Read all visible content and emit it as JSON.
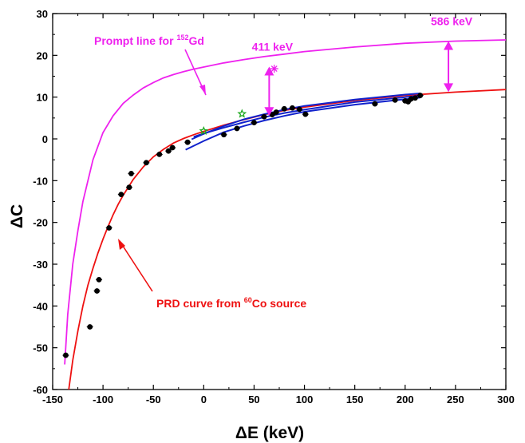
{
  "chart_data": {
    "type": "scatter",
    "xlabel": "ΔE (keV)",
    "ylabel": "ΔC",
    "xlim": [
      -150,
      300
    ],
    "ylim": [
      -60,
      30
    ],
    "x_ticks": [
      -150,
      -100,
      -50,
      0,
      50,
      100,
      150,
      200,
      250,
      300
    ],
    "y_ticks": [
      -60,
      -50,
      -40,
      -30,
      -20,
      -10,
      0,
      10,
      20,
      30
    ],
    "grid": false,
    "colors": {
      "prompt": "#ee22ee",
      "prd": "#ee1111",
      "band": "#1122cc",
      "points": "#000000",
      "star": "#22aa22",
      "arrow": "#ee22ee"
    },
    "series": [
      {
        "kind": "points",
        "points": [
          {
            "x": -137,
            "y": -51.8
          },
          {
            "x": -113,
            "y": -45.0
          },
          {
            "x": -106,
            "y": -36.4
          },
          {
            "x": -104,
            "y": -33.7
          },
          {
            "x": -94,
            "y": -21.3
          },
          {
            "x": -82,
            "y": -13.3
          },
          {
            "x": -74,
            "y": -11.6
          },
          {
            "x": -72,
            "y": -8.3
          },
          {
            "x": -57,
            "y": -5.7
          },
          {
            "x": -44,
            "y": -3.7
          },
          {
            "x": -35,
            "y": -2.9
          },
          {
            "x": -31,
            "y": -2.1
          },
          {
            "x": -16,
            "y": -0.8
          },
          {
            "x": 20,
            "y": 1.0
          },
          {
            "x": 33,
            "y": 2.5
          },
          {
            "x": 50,
            "y": 3.9
          },
          {
            "x": 60,
            "y": 5.3
          },
          {
            "x": 68,
            "y": 5.8
          },
          {
            "x": 72,
            "y": 6.4
          },
          {
            "x": 80,
            "y": 7.2
          },
          {
            "x": 88,
            "y": 7.4
          },
          {
            "x": 95,
            "y": 7.1
          },
          {
            "x": 101,
            "y": 5.9
          },
          {
            "x": 170,
            "y": 8.4
          },
          {
            "x": 190,
            "y": 9.3
          },
          {
            "x": 200,
            "y": 9.1
          },
          {
            "x": 203,
            "y": 8.9
          },
          {
            "x": 206,
            "y": 9.6
          },
          {
            "x": 210,
            "y": 9.8
          },
          {
            "x": 215,
            "y": 10.4
          }
        ]
      },
      {
        "kind": "stars",
        "points": [
          {
            "x": 0,
            "y": 1.9
          },
          {
            "x": 38,
            "y": 6.0
          }
        ]
      },
      {
        "kind": "star-cross",
        "points": [
          {
            "x": 70,
            "y": 16.8
          }
        ]
      }
    ],
    "curves": [
      {
        "kind": "prompt",
        "points": [
          [
            -138,
            -54
          ],
          [
            -135,
            -42
          ],
          [
            -130,
            -30
          ],
          [
            -125,
            -22
          ],
          [
            -120,
            -15
          ],
          [
            -110,
            -5
          ],
          [
            -100,
            1.5
          ],
          [
            -90,
            5.5
          ],
          [
            -80,
            8.5
          ],
          [
            -70,
            10.5
          ],
          [
            -60,
            12.2
          ],
          [
            -50,
            13.5
          ],
          [
            -40,
            14.6
          ],
          [
            -30,
            15.4
          ],
          [
            -20,
            16.1
          ],
          [
            -10,
            16.7
          ],
          [
            0,
            17.2
          ],
          [
            20,
            18.2
          ],
          [
            40,
            19.0
          ],
          [
            60,
            19.7
          ],
          [
            80,
            20.3
          ],
          [
            100,
            20.9
          ],
          [
            150,
            22.0
          ],
          [
            200,
            22.9
          ],
          [
            250,
            23.4
          ],
          [
            300,
            23.7
          ]
        ]
      },
      {
        "kind": "prd",
        "points": [
          [
            -134,
            -60
          ],
          [
            -130,
            -53
          ],
          [
            -125,
            -46
          ],
          [
            -120,
            -40
          ],
          [
            -115,
            -35
          ],
          [
            -110,
            -31
          ],
          [
            -105,
            -27.3
          ],
          [
            -100,
            -24
          ],
          [
            -95,
            -21
          ],
          [
            -90,
            -18.2
          ],
          [
            -85,
            -15.7
          ],
          [
            -80,
            -13.5
          ],
          [
            -70,
            -9.7
          ],
          [
            -60,
            -6.7
          ],
          [
            -50,
            -4.3
          ],
          [
            -40,
            -2.5
          ],
          [
            -30,
            -1
          ],
          [
            -20,
            0.1
          ],
          [
            -10,
            1
          ],
          [
            0,
            1.8
          ],
          [
            20,
            3.3
          ],
          [
            40,
            4.6
          ],
          [
            60,
            5.8
          ],
          [
            80,
            6.8
          ],
          [
            100,
            7.6
          ],
          [
            150,
            9.2
          ],
          [
            200,
            10.4
          ],
          [
            250,
            11.2
          ],
          [
            300,
            11.8
          ]
        ]
      },
      {
        "kind": "band-upper",
        "points": [
          [
            -12,
            -0.1
          ],
          [
            0,
            1.2
          ],
          [
            20,
            3.1
          ],
          [
            40,
            4.7
          ],
          [
            60,
            5.9
          ],
          [
            80,
            7.0
          ],
          [
            100,
            7.9
          ],
          [
            150,
            9.4
          ],
          [
            200,
            10.6
          ],
          [
            215,
            10.9
          ]
        ]
      },
      {
        "kind": "band-lower",
        "points": [
          [
            -18,
            -2.6
          ],
          [
            0,
            -0.5
          ],
          [
            20,
            1.6
          ],
          [
            40,
            3.1
          ],
          [
            60,
            4.4
          ],
          [
            80,
            5.5
          ],
          [
            100,
            6.5
          ],
          [
            150,
            8.2
          ],
          [
            200,
            9.5
          ],
          [
            215,
            9.9
          ]
        ]
      },
      {
        "kind": "band-mid",
        "points": [
          [
            -10,
            0.5
          ],
          [
            0,
            1.3
          ],
          [
            20,
            2.7
          ],
          [
            40,
            4.0
          ],
          [
            60,
            5.2
          ],
          [
            80,
            6.2
          ],
          [
            100,
            7.0
          ],
          [
            150,
            8.8
          ],
          [
            200,
            10.0
          ],
          [
            215,
            10.4
          ]
        ]
      }
    ],
    "arrows": [
      {
        "x": 65,
        "y_low": 5.5,
        "y_high": 17.3,
        "label": "411 keV"
      },
      {
        "x": 243,
        "y_low": 11.2,
        "y_high": 23.4,
        "label": "586 keV"
      }
    ],
    "annotations": {
      "prompt_label": {
        "prefix": "Prompt line for ",
        "sup": "152",
        "suffix": "Gd"
      },
      "prd_label": {
        "prefix": "PRD curve from ",
        "sup": "60",
        "suffix": "Co source"
      }
    }
  }
}
